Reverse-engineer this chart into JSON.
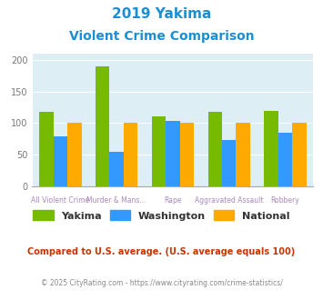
{
  "title_line1": "2019 Yakima",
  "title_line2": "Violent Crime Comparison",
  "title_color": "#1a8fd1",
  "categories": [
    "All Violent Crime",
    "Murder & Mans...",
    "Rape",
    "Aggravated Assault",
    "Robbery"
  ],
  "yakima": [
    118,
    191,
    111,
    118,
    120
  ],
  "washington": [
    79,
    54,
    104,
    73,
    85
  ],
  "national": [
    100,
    100,
    100,
    100,
    100
  ],
  "yakima_color": "#77bb00",
  "washington_color": "#3399ff",
  "national_color": "#ffaa00",
  "ylim": [
    0,
    210
  ],
  "yticks": [
    0,
    50,
    100,
    150,
    200
  ],
  "bg_color": "#ddeef5",
  "legend_labels": [
    "Yakima",
    "Washington",
    "National"
  ],
  "footnote1": "Compared to U.S. average. (U.S. average equals 100)",
  "footnote2": "© 2025 CityRating.com - https://www.cityrating.com/crime-statistics/",
  "footnote1_color": "#cc3300",
  "footnote2_color": "#888888",
  "label_color": "#aa88bb"
}
